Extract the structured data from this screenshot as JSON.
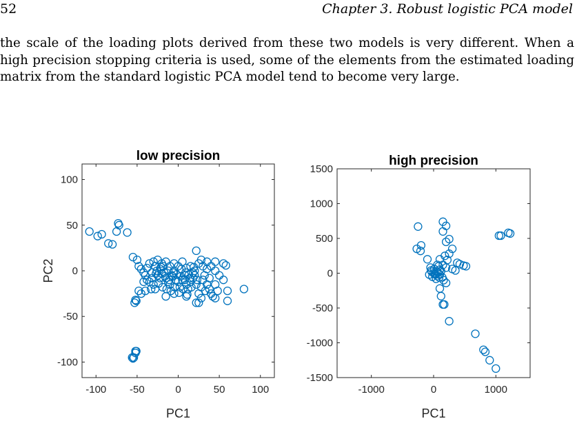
{
  "header": {
    "page_number": "52",
    "running_title": "Chapter 3.  Robust logistic PCA model"
  },
  "paragraph": "the scale of the loading plots derived from these two models is very different. When a high precision stopping criteria is used, some of the elements from the estimated loading matrix from the standard logistic PCA model tend to become very large.",
  "colors": {
    "marker": "#0072BD",
    "axis": "#262626"
  },
  "chart_data": [
    {
      "type": "scatter",
      "title": "low precision",
      "xlabel": "PC1",
      "ylabel": "PC2",
      "xlim": [
        -117,
        117
      ],
      "ylim": [
        -117,
        117
      ],
      "xticks": [
        -100,
        -50,
        0,
        50,
        100
      ],
      "yticks": [
        -100,
        -50,
        0,
        50,
        100
      ],
      "x_tick_labels": [
        "-100",
        "-50",
        "0",
        "50",
        "100"
      ],
      "y_tick_labels": [
        "-100",
        "-50",
        "0",
        "50",
        "100"
      ],
      "marker": "open-circle",
      "points": [
        [
          -108,
          43
        ],
        [
          -98,
          38
        ],
        [
          -93,
          40
        ],
        [
          -85,
          30
        ],
        [
          -80,
          29
        ],
        [
          -75,
          43
        ],
        [
          -72,
          50
        ],
        [
          -73,
          52
        ],
        [
          -62,
          42
        ],
        [
          -55,
          15
        ],
        [
          -50,
          12
        ],
        [
          -48,
          5
        ],
        [
          -45,
          2
        ],
        [
          -42,
          -2
        ],
        [
          -40,
          -5
        ],
        [
          -38,
          -10
        ],
        [
          -35,
          -12
        ],
        [
          -32,
          -8
        ],
        [
          -30,
          -15
        ],
        [
          -28,
          -20
        ],
        [
          -25,
          -5
        ],
        [
          -22,
          2
        ],
        [
          -20,
          -3
        ],
        [
          -18,
          5
        ],
        [
          -15,
          -8
        ],
        [
          -12,
          -12
        ],
        [
          -10,
          -15
        ],
        [
          -8,
          -5
        ],
        [
          -5,
          0
        ],
        [
          -3,
          -10
        ],
        [
          0,
          -12
        ],
        [
          2,
          -18
        ],
        [
          5,
          -10
        ],
        [
          8,
          -5
        ],
        [
          10,
          -15
        ],
        [
          12,
          -20
        ],
        [
          15,
          -12
        ],
        [
          18,
          -8
        ],
        [
          20,
          -5
        ],
        [
          22,
          -15
        ],
        [
          25,
          -25
        ],
        [
          28,
          -30
        ],
        [
          30,
          -10
        ],
        [
          32,
          -5
        ],
        [
          35,
          -15
        ],
        [
          38,
          -20
        ],
        [
          40,
          -25
        ],
        [
          42,
          -28
        ],
        [
          45,
          -30
        ],
        [
          48,
          -22
        ],
        [
          -45,
          -25
        ],
        [
          -48,
          -22
        ],
        [
          -42,
          -12
        ],
        [
          -38,
          3
        ],
        [
          -35,
          8
        ],
        [
          -30,
          10
        ],
        [
          -28,
          5
        ],
        [
          -25,
          12
        ],
        [
          -20,
          8
        ],
        [
          -15,
          10
        ],
        [
          -10,
          5
        ],
        [
          -5,
          8
        ],
        [
          0,
          5
        ],
        [
          5,
          10
        ],
        [
          10,
          3
        ],
        [
          15,
          5
        ],
        [
          20,
          0
        ],
        [
          25,
          8
        ],
        [
          30,
          5
        ],
        [
          35,
          10
        ],
        [
          40,
          5
        ],
        [
          45,
          0
        ],
        [
          50,
          -5
        ],
        [
          55,
          -10
        ],
        [
          22,
          22
        ],
        [
          28,
          12
        ],
        [
          35,
          2
        ],
        [
          -32,
          -2
        ],
        [
          -27,
          -3
        ],
        [
          -22,
          -8
        ],
        [
          -17,
          -2
        ],
        [
          -12,
          0
        ],
        [
          -7,
          -6
        ],
        [
          -2,
          -4
        ],
        [
          3,
          -6
        ],
        [
          8,
          -10
        ],
        [
          13,
          -4
        ],
        [
          18,
          -2
        ],
        [
          23,
          -10
        ],
        [
          28,
          -18
        ],
        [
          33,
          -22
        ],
        [
          38,
          -8
        ],
        [
          -24,
          -14
        ],
        [
          -19,
          -18
        ],
        [
          -14,
          -20
        ],
        [
          -9,
          -22
        ],
        [
          -4,
          -18
        ],
        [
          1,
          -24
        ],
        [
          6,
          -20
        ],
        [
          11,
          -26
        ],
        [
          16,
          -18
        ],
        [
          -26,
          0
        ],
        [
          -21,
          4
        ],
        [
          -16,
          -6
        ],
        [
          -11,
          -10
        ],
        [
          -6,
          -2
        ],
        [
          4,
          2
        ],
        [
          9,
          -2
        ],
        [
          14,
          -8
        ],
        [
          19,
          4
        ],
        [
          45,
          10
        ],
        [
          55,
          8
        ],
        [
          58,
          6
        ],
        [
          60,
          -22
        ],
        [
          60,
          -33
        ],
        [
          45,
          -15
        ],
        [
          80,
          -20
        ],
        [
          25,
          -35
        ],
        [
          22,
          -35
        ],
        [
          10,
          -28
        ],
        [
          -5,
          -25
        ],
        [
          -15,
          -28
        ],
        [
          -33,
          -20
        ],
        [
          -40,
          -22
        ],
        [
          -52,
          -32
        ],
        [
          -53,
          -35
        ],
        [
          -51,
          -33
        ],
        [
          -56,
          -95
        ],
        [
          -55,
          -96
        ],
        [
          -54,
          -95
        ],
        [
          -52,
          -88
        ],
        [
          -51,
          -88
        ],
        [
          -52,
          -90
        ]
      ]
    },
    {
      "type": "scatter",
      "title": "high precision",
      "xlabel": "PC1",
      "ylabel": "",
      "xlim": [
        -1550,
        1550
      ],
      "ylim": [
        -1500,
        1500
      ],
      "xticks": [
        -1000,
        0,
        1000
      ],
      "yticks": [
        -1500,
        -1000,
        -500,
        0,
        500,
        1000,
        1500
      ],
      "x_tick_labels": [
        "-1000",
        "0",
        "1000"
      ],
      "y_tick_labels": [
        "-1500",
        "-1000",
        "-500",
        "0",
        "500",
        "1000",
        "1500"
      ],
      "marker": "open-circle",
      "points": [
        [
          -250,
          670
        ],
        [
          -270,
          350
        ],
        [
          -200,
          400
        ],
        [
          -210,
          320
        ],
        [
          -100,
          200
        ],
        [
          150,
          740
        ],
        [
          200,
          680
        ],
        [
          150,
          600
        ],
        [
          250,
          490
        ],
        [
          200,
          450
        ],
        [
          300,
          350
        ],
        [
          100,
          200
        ],
        [
          180,
          250
        ],
        [
          250,
          280
        ],
        [
          220,
          190
        ],
        [
          380,
          150
        ],
        [
          420,
          130
        ],
        [
          480,
          110
        ],
        [
          520,
          100
        ],
        [
          300,
          60
        ],
        [
          350,
          40
        ],
        [
          200,
          80
        ],
        [
          150,
          120
        ],
        [
          100,
          50
        ],
        [
          50,
          30
        ],
        [
          0,
          0
        ],
        [
          30,
          -20
        ],
        [
          60,
          -40
        ],
        [
          -30,
          20
        ],
        [
          10,
          60
        ],
        [
          -50,
          80
        ],
        [
          80,
          100
        ],
        [
          120,
          30
        ],
        [
          -20,
          -50
        ],
        [
          40,
          -80
        ],
        [
          90,
          -60
        ],
        [
          160,
          -100
        ],
        [
          200,
          -140
        ],
        [
          140,
          -60
        ],
        [
          60,
          120
        ],
        [
          -70,
          -20
        ],
        [
          -40,
          40
        ],
        [
          20,
          -10
        ],
        [
          70,
          10
        ],
        [
          100,
          -20
        ],
        [
          100,
          -220
        ],
        [
          120,
          -330
        ],
        [
          150,
          -450
        ],
        [
          170,
          -450
        ],
        [
          250,
          -690
        ],
        [
          670,
          -870
        ],
        [
          800,
          -1100
        ],
        [
          830,
          -1130
        ],
        [
          900,
          -1250
        ],
        [
          1000,
          -1370
        ],
        [
          1050,
          540
        ],
        [
          1080,
          540
        ],
        [
          1200,
          580
        ],
        [
          1230,
          570
        ]
      ]
    }
  ]
}
